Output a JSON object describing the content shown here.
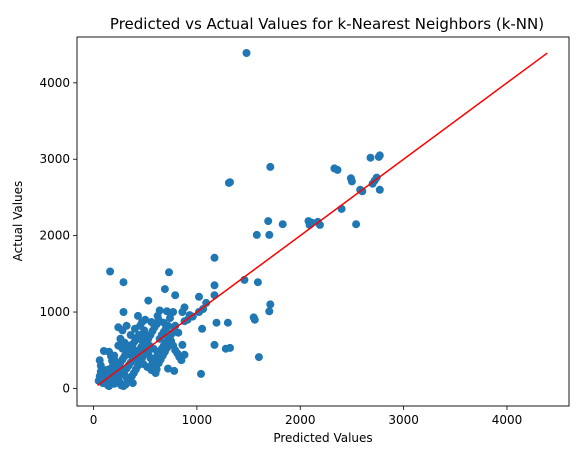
{
  "chart_data": {
    "type": "scatter",
    "title": "Predicted vs Actual Values for k-Nearest Neighbors (k-NN)",
    "xlabel": "Predicted Values",
    "ylabel": "Actual Values",
    "xlim": [
      -160,
      4600
    ],
    "ylim": [
      -230,
      4600
    ],
    "xticks": [
      0,
      1000,
      2000,
      3000,
      4000
    ],
    "yticks": [
      0,
      1000,
      2000,
      3000,
      4000
    ],
    "grid": false,
    "legend": "none",
    "point_color": "#1f77b4",
    "line_color": "#ff0000",
    "reference_line": {
      "x": [
        40,
        4390
      ],
      "y": [
        40,
        4390
      ]
    },
    "series": [
      {
        "points": [
          [
            1480,
            4390
          ],
          [
            1710,
            2900
          ],
          [
            1310,
            2690
          ],
          [
            1320,
            2700
          ],
          [
            2330,
            2880
          ],
          [
            2360,
            2860
          ],
          [
            2490,
            2750
          ],
          [
            2500,
            2710
          ],
          [
            2580,
            2600
          ],
          [
            2600,
            2580
          ],
          [
            2680,
            3020
          ],
          [
            2760,
            3030
          ],
          [
            2770,
            3050
          ],
          [
            2700,
            2680
          ],
          [
            2720,
            2720
          ],
          [
            2740,
            2760
          ],
          [
            2770,
            2600
          ],
          [
            2400,
            2350
          ],
          [
            2540,
            2150
          ],
          [
            2080,
            2190
          ],
          [
            2110,
            2170
          ],
          [
            2090,
            2140
          ],
          [
            2170,
            2180
          ],
          [
            2190,
            2140
          ],
          [
            1830,
            2150
          ],
          [
            1690,
            2190
          ],
          [
            1700,
            2010
          ],
          [
            1580,
            2010
          ],
          [
            1170,
            1710
          ],
          [
            1590,
            1390
          ],
          [
            1460,
            1420
          ],
          [
            160,
            1530
          ],
          [
            730,
            1520
          ],
          [
            290,
            1390
          ],
          [
            690,
            1300
          ],
          [
            790,
            1220
          ],
          [
            1020,
            1200
          ],
          [
            1170,
            1350
          ],
          [
            1170,
            1220
          ],
          [
            1020,
            1000
          ],
          [
            1060,
            1040
          ],
          [
            1090,
            1120
          ],
          [
            1710,
            1100
          ],
          [
            1700,
            1010
          ],
          [
            1550,
            930
          ],
          [
            1560,
            900
          ],
          [
            1190,
            860
          ],
          [
            1300,
            860
          ],
          [
            1050,
            780
          ],
          [
            1170,
            570
          ],
          [
            1280,
            520
          ],
          [
            1320,
            530
          ],
          [
            1600,
            410
          ],
          [
            1040,
            190
          ],
          [
            530,
            1150
          ],
          [
            640,
            1020
          ],
          [
            710,
            1010
          ],
          [
            770,
            1000
          ],
          [
            860,
            1000
          ],
          [
            880,
            1060
          ],
          [
            930,
            960
          ],
          [
            960,
            940
          ],
          [
            880,
            880
          ],
          [
            910,
            900
          ],
          [
            290,
            1000
          ],
          [
            430,
            950
          ],
          [
            500,
            900
          ],
          [
            560,
            870
          ],
          [
            620,
            950
          ],
          [
            680,
            860
          ],
          [
            740,
            920
          ],
          [
            790,
            820
          ],
          [
            820,
            730
          ],
          [
            860,
            570
          ],
          [
            880,
            440
          ],
          [
            720,
            260
          ],
          [
            780,
            230
          ],
          [
            100,
            490
          ],
          [
            150,
            480
          ],
          [
            200,
            430
          ],
          [
            240,
            800
          ],
          [
            280,
            760
          ],
          [
            320,
            820
          ],
          [
            360,
            700
          ],
          [
            400,
            780
          ],
          [
            260,
            650
          ],
          [
            300,
            600
          ],
          [
            340,
            560
          ],
          [
            380,
            520
          ],
          [
            420,
            480
          ],
          [
            460,
            640
          ],
          [
            500,
            600
          ],
          [
            540,
            560
          ],
          [
            580,
            520
          ],
          [
            620,
            480
          ],
          [
            240,
            560
          ],
          [
            280,
            520
          ],
          [
            320,
            480
          ],
          [
            360,
            440
          ],
          [
            400,
            400
          ],
          [
            440,
            360
          ],
          [
            480,
            320
          ],
          [
            520,
            280
          ],
          [
            560,
            240
          ],
          [
            600,
            200
          ],
          [
            200,
            380
          ],
          [
            220,
            340
          ],
          [
            240,
            300
          ],
          [
            260,
            260
          ],
          [
            280,
            220
          ],
          [
            300,
            180
          ],
          [
            320,
            140
          ],
          [
            340,
            110
          ],
          [
            360,
            90
          ],
          [
            380,
            70
          ],
          [
            60,
            370
          ],
          [
            70,
            300
          ],
          [
            80,
            250
          ],
          [
            90,
            200
          ],
          [
            100,
            150
          ],
          [
            110,
            110
          ],
          [
            120,
            80
          ],
          [
            130,
            60
          ],
          [
            140,
            40
          ],
          [
            150,
            30
          ],
          [
            170,
            420
          ],
          [
            180,
            360
          ],
          [
            190,
            310
          ],
          [
            200,
            270
          ],
          [
            210,
            230
          ],
          [
            220,
            190
          ],
          [
            230,
            150
          ],
          [
            240,
            120
          ],
          [
            250,
            90
          ],
          [
            260,
            60
          ],
          [
            270,
            40
          ],
          [
            290,
            30
          ],
          [
            310,
            50
          ],
          [
            330,
            80
          ],
          [
            350,
            120
          ],
          [
            370,
            160
          ],
          [
            390,
            200
          ],
          [
            410,
            250
          ],
          [
            430,
            300
          ],
          [
            450,
            350
          ],
          [
            470,
            400
          ],
          [
            490,
            450
          ],
          [
            510,
            500
          ],
          [
            530,
            450
          ],
          [
            550,
            400
          ],
          [
            570,
            350
          ],
          [
            590,
            300
          ],
          [
            610,
            250
          ],
          [
            630,
            330
          ],
          [
            650,
            380
          ],
          [
            670,
            430
          ],
          [
            690,
            480
          ],
          [
            710,
            530
          ],
          [
            730,
            580
          ],
          [
            750,
            620
          ],
          [
            770,
            560
          ],
          [
            790,
            500
          ],
          [
            810,
            460
          ],
          [
            830,
            410
          ],
          [
            850,
            370
          ],
          [
            640,
            650
          ],
          [
            660,
            700
          ],
          [
            680,
            740
          ],
          [
            700,
            780
          ],
          [
            720,
            820
          ],
          [
            550,
            700
          ],
          [
            570,
            750
          ],
          [
            590,
            800
          ],
          [
            610,
            840
          ],
          [
            630,
            900
          ],
          [
            450,
            820
          ],
          [
            470,
            870
          ],
          [
            490,
            760
          ],
          [
            510,
            700
          ],
          [
            530,
            650
          ],
          [
            150,
            250
          ],
          [
            170,
            200
          ],
          [
            190,
            160
          ],
          [
            210,
            120
          ],
          [
            230,
            80
          ],
          [
            120,
            240
          ],
          [
            140,
            190
          ],
          [
            160,
            140
          ],
          [
            180,
            100
          ],
          [
            200,
            60
          ],
          [
            320,
            260
          ],
          [
            340,
            300
          ],
          [
            360,
            340
          ],
          [
            380,
            380
          ],
          [
            400,
            420
          ],
          [
            420,
            460
          ],
          [
            440,
            500
          ],
          [
            460,
            540
          ],
          [
            480,
            580
          ],
          [
            500,
            620
          ],
          [
            260,
            340
          ],
          [
            280,
            380
          ],
          [
            300,
            420
          ],
          [
            320,
            460
          ],
          [
            340,
            500
          ],
          [
            360,
            540
          ],
          [
            380,
            580
          ],
          [
            400,
            620
          ],
          [
            420,
            660
          ],
          [
            440,
            700
          ],
          [
            600,
            400
          ],
          [
            620,
            440
          ],
          [
            640,
            480
          ],
          [
            660,
            520
          ],
          [
            680,
            560
          ],
          [
            700,
            600
          ],
          [
            720,
            640
          ],
          [
            740,
            680
          ],
          [
            760,
            720
          ],
          [
            780,
            760
          ],
          [
            50,
            100
          ],
          [
            60,
            160
          ],
          [
            70,
            220
          ],
          [
            80,
            130
          ],
          [
            90,
            70
          ]
        ]
      }
    ]
  }
}
